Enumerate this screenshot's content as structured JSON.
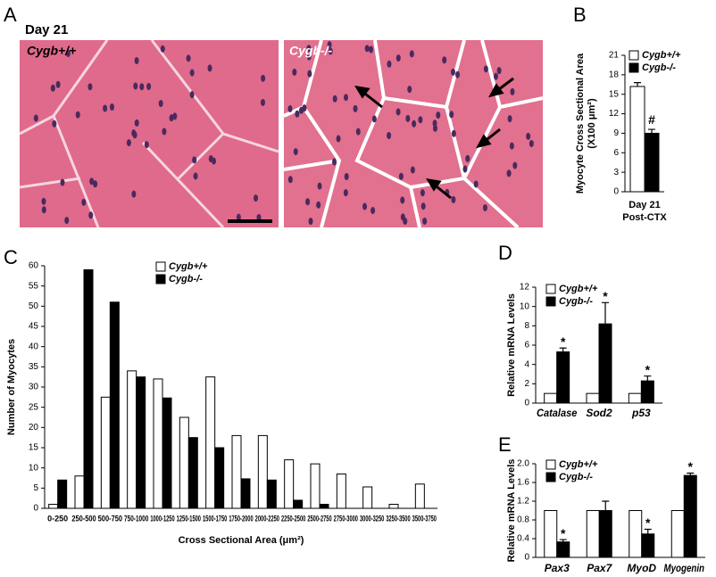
{
  "panel_a": {
    "panel": "A",
    "title": "Day 21",
    "images": [
      {
        "label": "Cygb+/+"
      },
      {
        "label": "Cygb-/-"
      }
    ]
  },
  "chart_data": [
    {
      "type": "bar",
      "panel": "B",
      "ylabel": [
        "Myocyte Cross Sectional Area",
        "(X100 μm²)"
      ],
      "categories": [
        "Day 21"
      ],
      "xlabel": "Post-CTX",
      "series": [
        {
          "name": "Cygb+/+",
          "color": "#ffffff",
          "values": [
            16.2
          ],
          "errors": [
            0.6
          ]
        },
        {
          "name": "Cygb-/-",
          "color": "#000000",
          "values": [
            9.0
          ],
          "errors": [
            0.6
          ],
          "annotations": [
            "#"
          ]
        }
      ],
      "ylim": [
        0,
        21
      ],
      "yticks": [
        0,
        3,
        6,
        9,
        12,
        15,
        18,
        21
      ]
    },
    {
      "type": "bar",
      "panel": "C",
      "ylabel": [
        "Number of Myocytes"
      ],
      "xlabel": "Cross Sectional Area (μm²)",
      "categories": [
        "0-250",
        "250-500",
        "500-750",
        "750-1000",
        "1000-1250",
        "1250-1500",
        "1500-1750",
        "1750-2000",
        "2000-2250",
        "2250-2500",
        "2500-2750",
        "2750-3000",
        "3000-3250",
        "3250-3500",
        "3500-3750"
      ],
      "series": [
        {
          "name": "Cygb+/+",
          "color": "#ffffff",
          "values": [
            1,
            8,
            27.5,
            34,
            32,
            22.5,
            32.5,
            18,
            18,
            12,
            11,
            8.5,
            5.3,
            1,
            6
          ]
        },
        {
          "name": "Cygb-/-",
          "color": "#000000",
          "values": [
            7,
            59,
            51,
            32.5,
            27.3,
            17.5,
            15,
            7.3,
            7,
            2,
            1,
            0,
            0,
            0,
            0
          ]
        }
      ],
      "ylim": [
        0,
        60
      ],
      "yticks": [
        0,
        5,
        10,
        15,
        20,
        25,
        30,
        35,
        40,
        45,
        50,
        55,
        60
      ]
    },
    {
      "type": "bar",
      "panel": "D",
      "ylabel": [
        "Relative mRNA Levels"
      ],
      "categories": [
        "Catalase",
        "Sod2",
        "p53"
      ],
      "series": [
        {
          "name": "Cygb+/+",
          "color": "#ffffff",
          "values": [
            1,
            1,
            1
          ]
        },
        {
          "name": "Cygb-/-",
          "color": "#000000",
          "values": [
            5.3,
            8.2,
            2.3
          ],
          "errors": [
            0.4,
            2.2,
            0.5
          ],
          "annotations": [
            "*",
            "*",
            "*"
          ]
        }
      ],
      "ylim": [
        0,
        12
      ],
      "yticks": [
        0,
        2,
        4,
        6,
        8,
        10,
        12
      ]
    },
    {
      "type": "bar",
      "panel": "E",
      "ylabel": [
        "Relative mRNA Levels"
      ],
      "categories": [
        "Pax3",
        "Pax7",
        "MyoD",
        "Myogenin"
      ],
      "series": [
        {
          "name": "Cygb+/+",
          "color": "#ffffff",
          "values": [
            1,
            1,
            1,
            1
          ]
        },
        {
          "name": "Cygb-/-",
          "color": "#000000",
          "values": [
            0.33,
            1.0,
            0.5,
            1.75
          ],
          "errors": [
            0.05,
            0.2,
            0.1,
            0.05
          ],
          "annotations": [
            "*",
            null,
            "*",
            "*"
          ]
        }
      ],
      "ylim": [
        0,
        2
      ],
      "yticks": [
        0,
        0.4,
        0.8,
        1.2,
        1.6,
        {
          "value": 2,
          "label": "2.0"
        }
      ]
    }
  ]
}
